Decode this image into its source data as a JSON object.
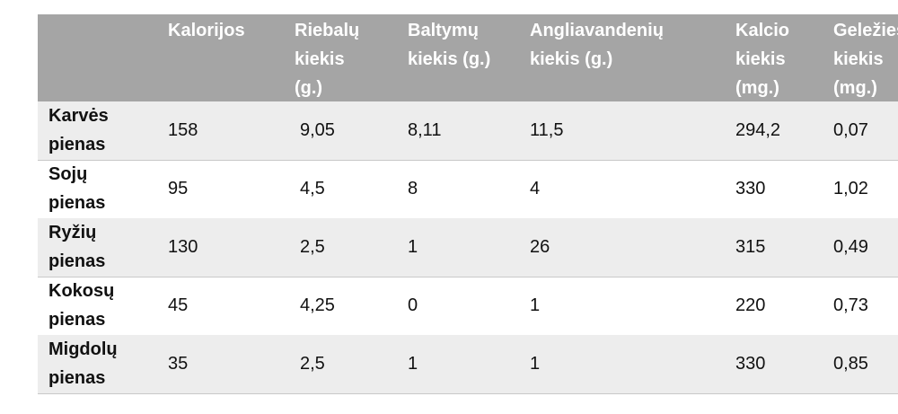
{
  "table": {
    "columns": [
      "Kalorijos",
      "Riebalų\nkiekis\n(g.)",
      "Baltymų\nkiekis (g.)",
      "Angliavandenių\nkiekis (g.)",
      "Kalcio\nkiekis\n(mg.)",
      "Geležies\nkiekis\n(mg.)"
    ],
    "rows": [
      {
        "label": "Karvės\npienas",
        "cells": [
          "158",
          "9,05",
          "8,11",
          "11,5",
          "294,2",
          "0,07"
        ]
      },
      {
        "label": "Sojų\npienas",
        "cells": [
          "95",
          "4,5",
          "8",
          "4",
          "330",
          "1,02"
        ]
      },
      {
        "label": "Ryžių\npienas",
        "cells": [
          "130",
          "2,5",
          "1",
          "26",
          "315",
          "0,49"
        ]
      },
      {
        "label": "Kokosų\npienas",
        "cells": [
          "45",
          "4,25",
          "0",
          "1",
          "220",
          "0,73"
        ]
      },
      {
        "label": "Migdolų\npienas",
        "cells": [
          "35",
          "2,5",
          "1",
          "1",
          "330",
          "0,85"
        ]
      }
    ]
  }
}
